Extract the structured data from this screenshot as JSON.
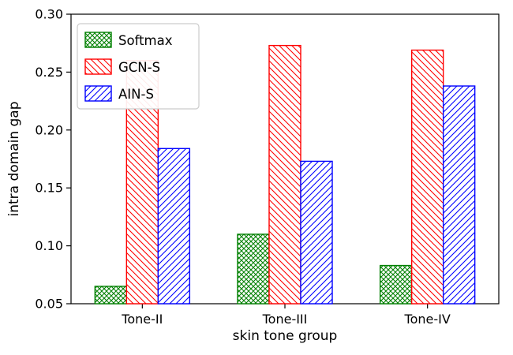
{
  "figure": {
    "background": "#ffffff"
  },
  "chart_data": {
    "type": "bar",
    "title": "",
    "xlabel": "skin tone group",
    "ylabel": "intra domain gap",
    "categories": [
      "Tone-II",
      "Tone-III",
      "Tone-IV"
    ],
    "series": [
      {
        "name": "Softmax",
        "color": "#008000",
        "hatch": "cross",
        "values": [
          0.065,
          0.11,
          0.083
        ]
      },
      {
        "name": "GCN-S",
        "color": "#ff0000",
        "hatch": "back-diagonal",
        "values": [
          0.26,
          0.273,
          0.269
        ]
      },
      {
        "name": "AIN-S",
        "color": "#0000ff",
        "hatch": "forward-diagonal",
        "values": [
          0.184,
          0.173,
          0.238
        ]
      }
    ],
    "ylim": [
      0.05,
      0.3
    ],
    "yticks": [
      0.05,
      0.1,
      0.15,
      0.2,
      0.25,
      0.3
    ],
    "ytick_labels": [
      "0.05",
      "0.10",
      "0.15",
      "0.20",
      "0.25",
      "0.30"
    ],
    "legend": {
      "position": "upper left",
      "entries": [
        "Softmax",
        "GCN-S",
        "AIN-S"
      ]
    },
    "grid": false,
    "bar_fill": "#ffffff",
    "axis_color": "#000000"
  }
}
